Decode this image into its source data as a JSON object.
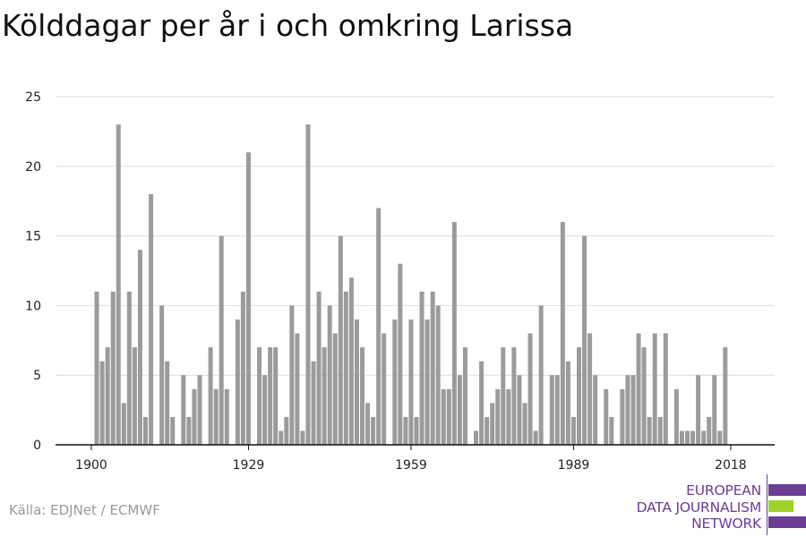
{
  "title": "Kölddagar per år i och omkring Larissa",
  "source": "Källa: EDJNet / ECMWF",
  "logo": {
    "lines": [
      "EUROPEAN",
      "DATA JOURNALISM",
      "NETWORK"
    ],
    "colors": {
      "text": "#6b3d96",
      "bar_purple": "#6b3d96",
      "bar_green": "#9fd12b"
    }
  },
  "colors": {
    "bars": "#9b9b9b",
    "grid": "#dddddd",
    "axis": "#111111"
  },
  "chart_data": {
    "type": "bar",
    "x_start": 1901,
    "x_tick_labels": [
      1900,
      1929,
      1959,
      1989,
      2018
    ],
    "y_tick_labels": [
      0,
      5,
      10,
      15,
      20,
      25
    ],
    "ylim": [
      0,
      25
    ],
    "xlim": [
      1899.5,
      2025
    ],
    "grid": true,
    "values": [
      11,
      6,
      7,
      11,
      23,
      3,
      11,
      7,
      14,
      2,
      18,
      0,
      10,
      6,
      2,
      0,
      5,
      2,
      4,
      5,
      0,
      7,
      4,
      15,
      4,
      0,
      9,
      11,
      21,
      0,
      7,
      5,
      7,
      7,
      1,
      2,
      10,
      8,
      1,
      23,
      6,
      11,
      7,
      10,
      8,
      15,
      11,
      12,
      9,
      7,
      3,
      2,
      17,
      8,
      0,
      9,
      13,
      2,
      9,
      2,
      11,
      9,
      11,
      10,
      4,
      4,
      16,
      5,
      7,
      0,
      1,
      6,
      2,
      3,
      4,
      7,
      4,
      7,
      5,
      3,
      8,
      1,
      10,
      0,
      5,
      5,
      16,
      6,
      2,
      7,
      15,
      8,
      5,
      0,
      4,
      2,
      0,
      4,
      5,
      5,
      8,
      7,
      2,
      8,
      2,
      8,
      0,
      4,
      1,
      1,
      1,
      5,
      1,
      2,
      5,
      1,
      7
    ],
    "title": "Kölddagar per år i och omkring Larissa",
    "xlabel": "",
    "ylabel": ""
  }
}
